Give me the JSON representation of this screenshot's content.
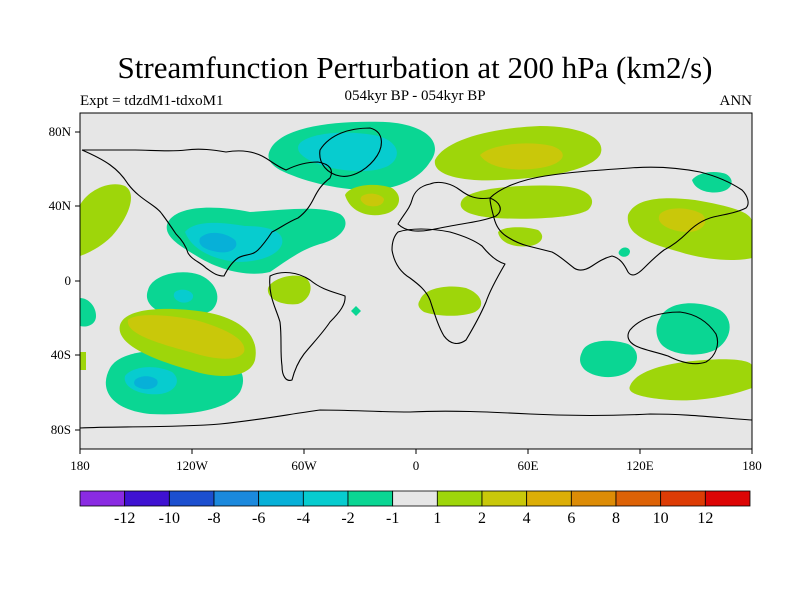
{
  "title": "Streamfunction Perturbation at 200 hPa (km2/s)",
  "subtitle_left": "Expt = tdzdM1-tdxoM1",
  "subtitle_center": "054kyr BP - 054kyr BP",
  "subtitle_right": "ANN",
  "y_ticks": [
    "80N",
    "40N",
    "0",
    "40S",
    "80S"
  ],
  "x_ticks": [
    "180",
    "120W",
    "60W",
    "0",
    "60E",
    "120E",
    "180"
  ],
  "colorbar": {
    "colors": [
      "#8a2be2",
      "#3f12d2",
      "#1c4fcf",
      "#1b89dd",
      "#07b0d8",
      "#07cccf",
      "#0ad693",
      "#e6e6e6",
      "#9ed60a",
      "#c9c80a",
      "#dcae07",
      "#dd8c06",
      "#dd6206",
      "#dd3c05",
      "#dd0505"
    ],
    "labels": [
      "-12",
      "-10",
      "-8",
      "-6",
      "-4",
      "-2",
      "-1",
      "1",
      "2",
      "4",
      "6",
      "8",
      "10",
      "12"
    ]
  },
  "map_colors": {
    "background": "#e6e6e6",
    "neg1": "#0ad693",
    "neg2": "#07cccf",
    "neg4": "#07b0d8",
    "pos1": "#9ed60a",
    "pos2": "#c9c80a",
    "pos4": "#dcae07"
  }
}
